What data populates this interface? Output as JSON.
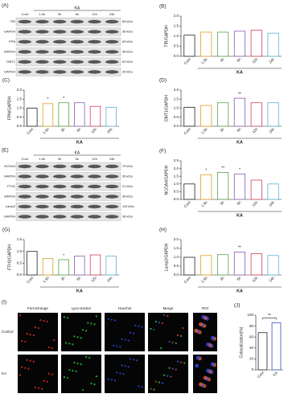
{
  "chart_data": [
    {
      "type": "bar",
      "panel": "(B)",
      "ylabel": "TfR/GAPDH",
      "categories": [
        "Cont",
        "1.5h",
        "3h",
        "6h",
        "12h",
        "24h"
      ],
      "values": [
        1.05,
        1.2,
        1.2,
        1.25,
        1.3,
        1.15
      ],
      "colors": [
        "#222222",
        "#e0a020",
        "#5aa050",
        "#8a5ab0",
        "#d04060",
        "#5ab0d8"
      ],
      "ylim": [
        0,
        2
      ],
      "yticks": [
        {
          "value": 0,
          "label": "0.0"
        },
        {
          "value": 0.5,
          "label": "0.5"
        },
        {
          "value": 1,
          "label": "1.0"
        },
        {
          "value": 1.5,
          "label": "1.5"
        },
        {
          "value": 2,
          "label": "2.0"
        }
      ],
      "group_label": "KA",
      "annotations": [
        null,
        null,
        null,
        null,
        null,
        null
      ]
    },
    {
      "type": "bar",
      "panel": "(C)",
      "ylabel": "FPN/GAPDH",
      "categories": [
        "Cont",
        "1.5h",
        "3h",
        "6h",
        "12h",
        "24h"
      ],
      "values": [
        1.0,
        1.25,
        1.3,
        1.3,
        1.1,
        1.05
      ],
      "colors": [
        "#222222",
        "#e0a020",
        "#5aa050",
        "#8a5ab0",
        "#d04060",
        "#5ab0d8"
      ],
      "ylim": [
        0,
        2
      ],
      "yticks": [
        {
          "value": 0,
          "label": "0.0"
        },
        {
          "value": 0.5,
          "label": "0.5"
        },
        {
          "value": 1,
          "label": "1.0"
        },
        {
          "value": 1.5,
          "label": "1.5"
        },
        {
          "value": 2,
          "label": "2.0"
        }
      ],
      "group_label": "KA",
      "annotations": [
        null,
        "*",
        "*",
        null,
        null,
        null
      ]
    },
    {
      "type": "bar",
      "panel": "(D)",
      "ylabel": "DMT1/GAPDH",
      "categories": [
        "Cont",
        "1.5h",
        "3h",
        "6h",
        "12h",
        "24h"
      ],
      "values": [
        1.05,
        1.15,
        1.3,
        1.55,
        1.3,
        1.3
      ],
      "colors": [
        "#222222",
        "#e0a020",
        "#5aa050",
        "#8a5ab0",
        "#d04060",
        "#5ab0d8"
      ],
      "ylim": [
        0,
        2
      ],
      "yticks": [
        {
          "value": 0,
          "label": "0.0"
        },
        {
          "value": 0.5,
          "label": "0.5"
        },
        {
          "value": 1,
          "label": "1.0"
        },
        {
          "value": 1.5,
          "label": "1.5"
        },
        {
          "value": 2,
          "label": "2.0"
        }
      ],
      "group_label": "KA",
      "annotations": [
        null,
        null,
        null,
        "**",
        null,
        null
      ]
    },
    {
      "type": "bar",
      "panel": "(F)",
      "ylabel": "NCOA4/GAPDH",
      "categories": [
        "Cont",
        "1.5h",
        "3h",
        "6h",
        "12h",
        "24h"
      ],
      "values": [
        1.0,
        1.6,
        1.75,
        1.65,
        1.25,
        1.0
      ],
      "colors": [
        "#222222",
        "#e0a020",
        "#5aa050",
        "#8a5ab0",
        "#d04060",
        "#5ab0d8"
      ],
      "ylim": [
        0,
        2.5
      ],
      "yticks": [
        {
          "value": 0,
          "label": "0.0"
        },
        {
          "value": 0.5,
          "label": "0.5"
        },
        {
          "value": 1,
          "label": "1.0"
        },
        {
          "value": 1.5,
          "label": "1.5"
        },
        {
          "value": 2,
          "label": "2.0"
        },
        {
          "value": 2.5,
          "label": "2.5"
        }
      ],
      "group_label": "KA",
      "annotations": [
        null,
        "*",
        "**",
        "*",
        null,
        null
      ]
    },
    {
      "type": "bar",
      "panel": "(G)",
      "ylabel": "FTH1/GAPDH",
      "categories": [
        "Cont",
        "1.5h",
        "3h",
        "6h",
        "12h",
        "24h"
      ],
      "values": [
        1.0,
        0.7,
        0.65,
        0.8,
        0.85,
        0.8
      ],
      "colors": [
        "#222222",
        "#e0a020",
        "#5aa050",
        "#8a5ab0",
        "#d04060",
        "#5ab0d8"
      ],
      "ylim": [
        0,
        1.5
      ],
      "yticks": [
        {
          "value": 0,
          "label": "0.0"
        },
        {
          "value": 0.5,
          "label": "0.5"
        },
        {
          "value": 1,
          "label": "1.0"
        },
        {
          "value": 1.5,
          "label": "1.5"
        }
      ],
      "group_label": "KA",
      "annotations": [
        null,
        null,
        "*",
        null,
        null,
        null
      ]
    },
    {
      "type": "bar",
      "panel": "(H)",
      "ylabel": "Lamp2/GAPDH",
      "categories": [
        "Cont",
        "1.5h",
        "3h",
        "6h",
        "12h",
        "24h"
      ],
      "values": [
        1.0,
        1.1,
        1.15,
        1.3,
        1.2,
        1.1
      ],
      "colors": [
        "#222222",
        "#e0a020",
        "#5aa050",
        "#8a5ab0",
        "#d04060",
        "#5ab0d8"
      ],
      "ylim": [
        0,
        2
      ],
      "yticks": [
        {
          "value": 0,
          "label": "0.0"
        },
        {
          "value": 0.5,
          "label": "0.5"
        },
        {
          "value": 1,
          "label": "1.0"
        },
        {
          "value": 1.5,
          "label": "1.5"
        },
        {
          "value": 2,
          "label": "2.0"
        }
      ],
      "group_label": "KA",
      "annotations": [
        null,
        null,
        null,
        "**",
        null,
        null
      ]
    },
    {
      "type": "bar",
      "panel": "(J)",
      "ylabel": "Colocalization(%)",
      "categories": [
        "Cont",
        "KA"
      ],
      "values": [
        68,
        86
      ],
      "colors": [
        "#222222",
        "#3050c0"
      ],
      "ylim": [
        0,
        100
      ],
      "yticks": [
        0,
        20,
        40,
        60,
        80,
        100
      ],
      "significance": "**"
    }
  ],
  "blots": [
    {
      "panel": "(A)",
      "group": "KA",
      "lanes": [
        "Cont",
        "1.5h",
        "3h",
        "6h",
        "12h",
        "24h"
      ],
      "rows": [
        {
          "label": "TfR",
          "kda": "85 kDa"
        },
        {
          "label": "GAPDH",
          "kda": "36 kDa"
        },
        {
          "label": "FPN",
          "kda": "65 kDa"
        },
        {
          "label": "GAPDH",
          "kda": "36 kDa"
        },
        {
          "label": "DMT1",
          "kda": "62 kDa"
        },
        {
          "label": "GAPDH",
          "kda": "36 kDa"
        }
      ]
    },
    {
      "panel": "(E)",
      "group": "KA",
      "lanes": [
        "Cont",
        "1.5h",
        "3h",
        "6h",
        "12h",
        "24h"
      ],
      "rows": [
        {
          "label": "NCOA4",
          "kda": "70 kDa"
        },
        {
          "label": "GAPDH",
          "kda": "36 kDa"
        },
        {
          "label": "FTH1",
          "kda": "21 kDa"
        },
        {
          "label": "GAPDH",
          "kda": "36 kDa"
        },
        {
          "label": "Lamp2",
          "kda": "110 kDa"
        },
        {
          "label": "GAPDH",
          "kda": "36 kDa"
        }
      ]
    }
  ],
  "imaging": {
    "panel": "(I)",
    "columns": [
      "FerroOrange",
      "Lyso-tracker",
      "Hoechst",
      "Merge",
      "ROI"
    ],
    "rows": [
      "Control",
      "KA"
    ]
  }
}
